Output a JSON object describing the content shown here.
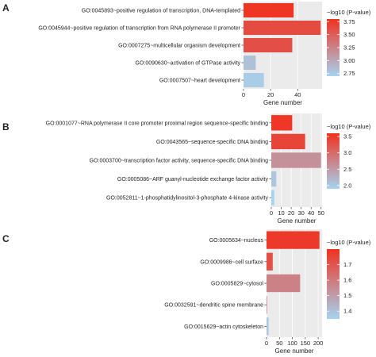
{
  "chart_data": [
    {
      "type": "bar",
      "orientation": "horizontal",
      "panel_label": "A",
      "categories": [
        "GO:0045893~positive regulation of transcription, DNA-templated",
        "GO:0045944~positive regulation of transcription from RNA polymerase II promoter",
        "GO:0007275~multicellular organism development",
        "GO:0090630~activation of GTPase activity",
        "GO:0007507~heart development"
      ],
      "values": [
        37,
        57,
        36,
        9,
        15
      ],
      "color_values": [
        3.78,
        3.62,
        3.6,
        2.82,
        2.75
      ],
      "xlabel": "Gene number",
      "xticks": [
        0,
        20,
        40
      ],
      "xlim": [
        0,
        58
      ],
      "legend_title": "−log10 (P-value)",
      "legend_ticks": [
        3.75,
        3.5,
        3.25,
        3.0,
        2.75
      ],
      "color_range": [
        2.7,
        3.8
      ],
      "color_low": "#a6d3f0",
      "color_high": "#f03220",
      "grid": true,
      "legend_position": "right"
    },
    {
      "type": "bar",
      "orientation": "horizontal",
      "panel_label": "B",
      "categories": [
        "GO:0001077~RNA polymerase II core promoter proximal region sequence-specific binding",
        "GO:0043565~sequence-specific DNA binding",
        "GO:0003700~transcription factor activity, sequence-specific DNA binding",
        "GO:0005086~ARF guanyl-nucleotide exchange factor activity",
        "GO:0052811~1-phosphatidylinositol-3-phosphate 4-kinase activity"
      ],
      "values": [
        21,
        34,
        50,
        5,
        3
      ],
      "color_values": [
        3.55,
        3.4,
        2.6,
        2.05,
        1.9
      ],
      "xlabel": "Gene number",
      "xticks": [
        0,
        10,
        20,
        30,
        40,
        50
      ],
      "xlim": [
        0,
        51
      ],
      "legend_title": "−log10 (P-value)",
      "legend_ticks": [
        3.5,
        3.0,
        2.5,
        2.0
      ],
      "color_range": [
        1.9,
        3.6
      ],
      "color_low": "#a6d3f0",
      "color_high": "#f03220",
      "grid": true,
      "legend_position": "right"
    },
    {
      "type": "bar",
      "orientation": "horizontal",
      "panel_label": "C",
      "categories": [
        "GO:0005634~nucleus",
        "GO:0009986~cell surface",
        "GO:0005829~cytosol",
        "GO:0032591~dendritic spine membrane",
        "GO:0015629~actin cytoskeleton"
      ],
      "values": [
        205,
        24,
        130,
        2,
        8
      ],
      "color_values": [
        1.78,
        1.72,
        1.58,
        1.56,
        1.38
      ],
      "xlabel": "Gene number",
      "xticks": [
        0,
        50,
        100,
        150,
        200
      ],
      "xlim": [
        0,
        215
      ],
      "legend_title": "−log10 (P-value)",
      "legend_ticks": [
        1.7,
        1.6,
        1.5,
        1.4
      ],
      "color_range": [
        1.35,
        1.8
      ],
      "color_low": "#a6d3f0",
      "color_high": "#f03220",
      "grid": true,
      "legend_position": "right"
    }
  ]
}
